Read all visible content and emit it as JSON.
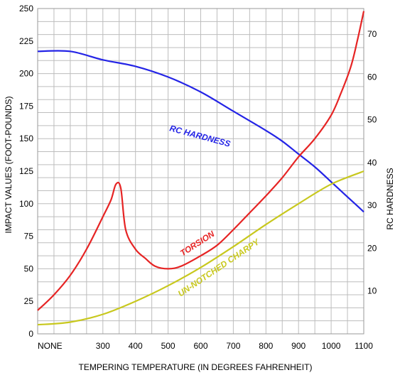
{
  "chart_data": {
    "type": "line",
    "title": "",
    "xlabel": "TEMPERING TEMPERATURE (IN DEGREES FAHRENHEIT)",
    "ylabel_left": "IMPACT VALUES (FOOT-POUNDS)",
    "ylabel_right": "RC  HARDNESS",
    "x_tick_labels": [
      "NONE",
      "300",
      "400",
      "500",
      "600",
      "700",
      "800",
      "900",
      "1000",
      "1100"
    ],
    "x_tick_values": [
      100,
      300,
      400,
      500,
      600,
      700,
      800,
      900,
      1000,
      1100
    ],
    "xlim": [
      100,
      1100
    ],
    "ylim_left": [
      0,
      250
    ],
    "y_ticks_left": [
      0,
      25,
      50,
      75,
      100,
      125,
      150,
      175,
      200,
      225,
      250
    ],
    "ylim_right": [
      0,
      76
    ],
    "y_ticks_right": [
      10,
      20,
      30,
      40,
      50,
      60,
      70
    ],
    "grid": true,
    "series": [
      {
        "name": "RC  HARDNESS",
        "color": "#2424e6",
        "axis": "right",
        "x": [
          100,
          200,
          300,
          400,
          500,
          600,
          700,
          800,
          850,
          900,
          950,
          1000,
          1050,
          1100
        ],
        "y": [
          66,
          66,
          64,
          62.5,
          60,
          56.5,
          52,
          47.5,
          45,
          42,
          39,
          35.5,
          32,
          28.5
        ]
      },
      {
        "name": "TORSION",
        "color": "#e62424",
        "axis": "left",
        "x": [
          100,
          150,
          200,
          250,
          300,
          325,
          340,
          355,
          370,
          400,
          430,
          460,
          500,
          540,
          600,
          650,
          700,
          750,
          800,
          850,
          900,
          950,
          1000,
          1030,
          1060,
          1080,
          1100
        ],
        "y": [
          18,
          30,
          45,
          65,
          90,
          103,
          115,
          112,
          80,
          65,
          58,
          52,
          50,
          52,
          60,
          68,
          80,
          93,
          106,
          120,
          136,
          150,
          168,
          185,
          205,
          225,
          248
        ]
      },
      {
        "name": "UN-NOTCHED CHARPY",
        "color": "#c8c81e",
        "axis": "left",
        "x": [
          100,
          200,
          300,
          400,
          500,
          600,
          700,
          800,
          900,
          1000,
          1100
        ],
        "y": [
          7,
          9,
          15,
          25,
          37,
          51,
          67,
          84,
          100,
          115,
          125
        ]
      }
    ]
  }
}
